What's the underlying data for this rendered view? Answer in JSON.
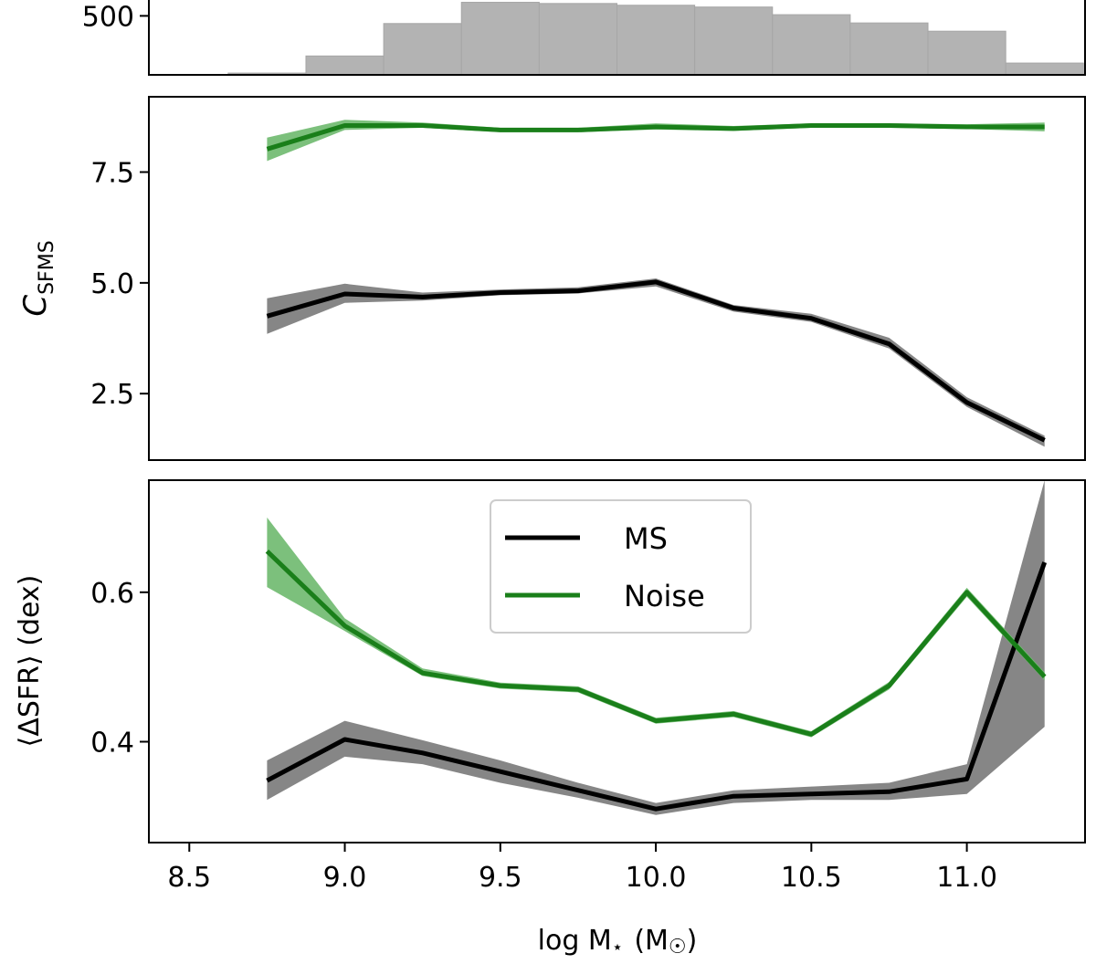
{
  "chart_data": [
    {
      "panel": "histogram",
      "type": "bar",
      "ylabel": "",
      "yticks": [
        500
      ],
      "ytick_labels": [
        "500"
      ],
      "ylim": [
        0,
        650
      ],
      "bin_edges": [
        8.625,
        8.875,
        9.125,
        9.375,
        9.625,
        9.875,
        10.125,
        10.375,
        10.625,
        10.875,
        11.125,
        11.375
      ],
      "values": [
        15,
        160,
        435,
        615,
        605,
        590,
        575,
        510,
        440,
        370,
        100
      ],
      "color": "#b3b3b3"
    },
    {
      "panel": "c_sfms",
      "type": "line",
      "ylabel": "C",
      "ylabel_sub": "SFMS",
      "ylim": [
        1.0,
        9.2
      ],
      "yticks": [
        2.5,
        5.0,
        7.5
      ],
      "ytick_labels": [
        "2.5",
        "5.0",
        "7.5"
      ],
      "x": [
        8.75,
        9.0,
        9.25,
        9.5,
        9.75,
        10.0,
        10.25,
        10.5,
        10.75,
        11.0,
        11.25
      ],
      "series": [
        {
          "name": "MS",
          "color": "#000000",
          "band_color": "#7f7f7f",
          "values": [
            4.25,
            4.75,
            4.68,
            4.78,
            4.82,
            5.02,
            4.43,
            4.2,
            3.62,
            2.3,
            1.45
          ],
          "lower": [
            3.85,
            4.55,
            4.6,
            4.72,
            4.76,
            4.92,
            4.35,
            4.12,
            3.52,
            2.2,
            1.3
          ],
          "upper": [
            4.65,
            4.98,
            4.78,
            4.85,
            4.9,
            5.1,
            4.5,
            4.3,
            3.76,
            2.42,
            1.55
          ]
        },
        {
          "name": "Noise",
          "color": "#1a7f1a",
          "band_color": "#75bd75",
          "values": [
            8.02,
            8.55,
            8.55,
            8.45,
            8.45,
            8.52,
            8.48,
            8.55,
            8.55,
            8.52,
            8.52
          ],
          "lower": [
            7.75,
            8.45,
            8.5,
            8.4,
            8.4,
            8.46,
            8.43,
            8.5,
            8.5,
            8.47,
            8.42
          ],
          "upper": [
            8.28,
            8.68,
            8.62,
            8.5,
            8.5,
            8.6,
            8.54,
            8.6,
            8.6,
            8.58,
            8.62
          ]
        }
      ]
    },
    {
      "panel": "delta_sfr",
      "type": "line",
      "ylabel": "⟨ΔSFR⟩ (dex)",
      "xlabel_prefix": "log M",
      "xlabel_star": "⋆",
      "xlabel_unit": "(M",
      "xlabel_sun": "☉",
      "xlabel_close": ")",
      "xlim": [
        8.37,
        11.38
      ],
      "ylim": [
        0.265,
        0.75
      ],
      "yticks": [
        0.4,
        0.6
      ],
      "ytick_labels": [
        "0.4",
        "0.6"
      ],
      "xticks": [
        8.5,
        9.0,
        9.5,
        10.0,
        10.5,
        11.0
      ],
      "xtick_labels": [
        "8.5",
        "9.0",
        "9.5",
        "10.0",
        "10.5",
        "11.0"
      ],
      "x": [
        8.75,
        9.0,
        9.25,
        9.5,
        9.75,
        10.0,
        10.25,
        10.5,
        10.75,
        11.0,
        11.25
      ],
      "legend_position": "top-center",
      "series": [
        {
          "name": "MS",
          "color": "#000000",
          "band_color": "#7f7f7f",
          "values": [
            0.348,
            0.403,
            0.385,
            0.36,
            0.335,
            0.31,
            0.327,
            0.33,
            0.333,
            0.35,
            0.64
          ],
          "lower": [
            0.322,
            0.38,
            0.37,
            0.345,
            0.325,
            0.302,
            0.318,
            0.322,
            0.322,
            0.33,
            0.42
          ],
          "upper": [
            0.375,
            0.428,
            0.402,
            0.375,
            0.345,
            0.318,
            0.335,
            0.34,
            0.345,
            0.37,
            0.75
          ]
        },
        {
          "name": "Noise",
          "color": "#1a7f1a",
          "band_color": "#75bd75",
          "values": [
            0.655,
            0.555,
            0.492,
            0.475,
            0.47,
            0.428,
            0.437,
            0.41,
            0.475,
            0.6,
            0.487
          ],
          "lower": [
            0.607,
            0.548,
            0.488,
            0.471,
            0.466,
            0.424,
            0.433,
            0.406,
            0.47,
            0.594,
            0.482
          ],
          "upper": [
            0.7,
            0.565,
            0.498,
            0.479,
            0.474,
            0.432,
            0.441,
            0.414,
            0.48,
            0.606,
            0.493
          ]
        }
      ]
    }
  ]
}
